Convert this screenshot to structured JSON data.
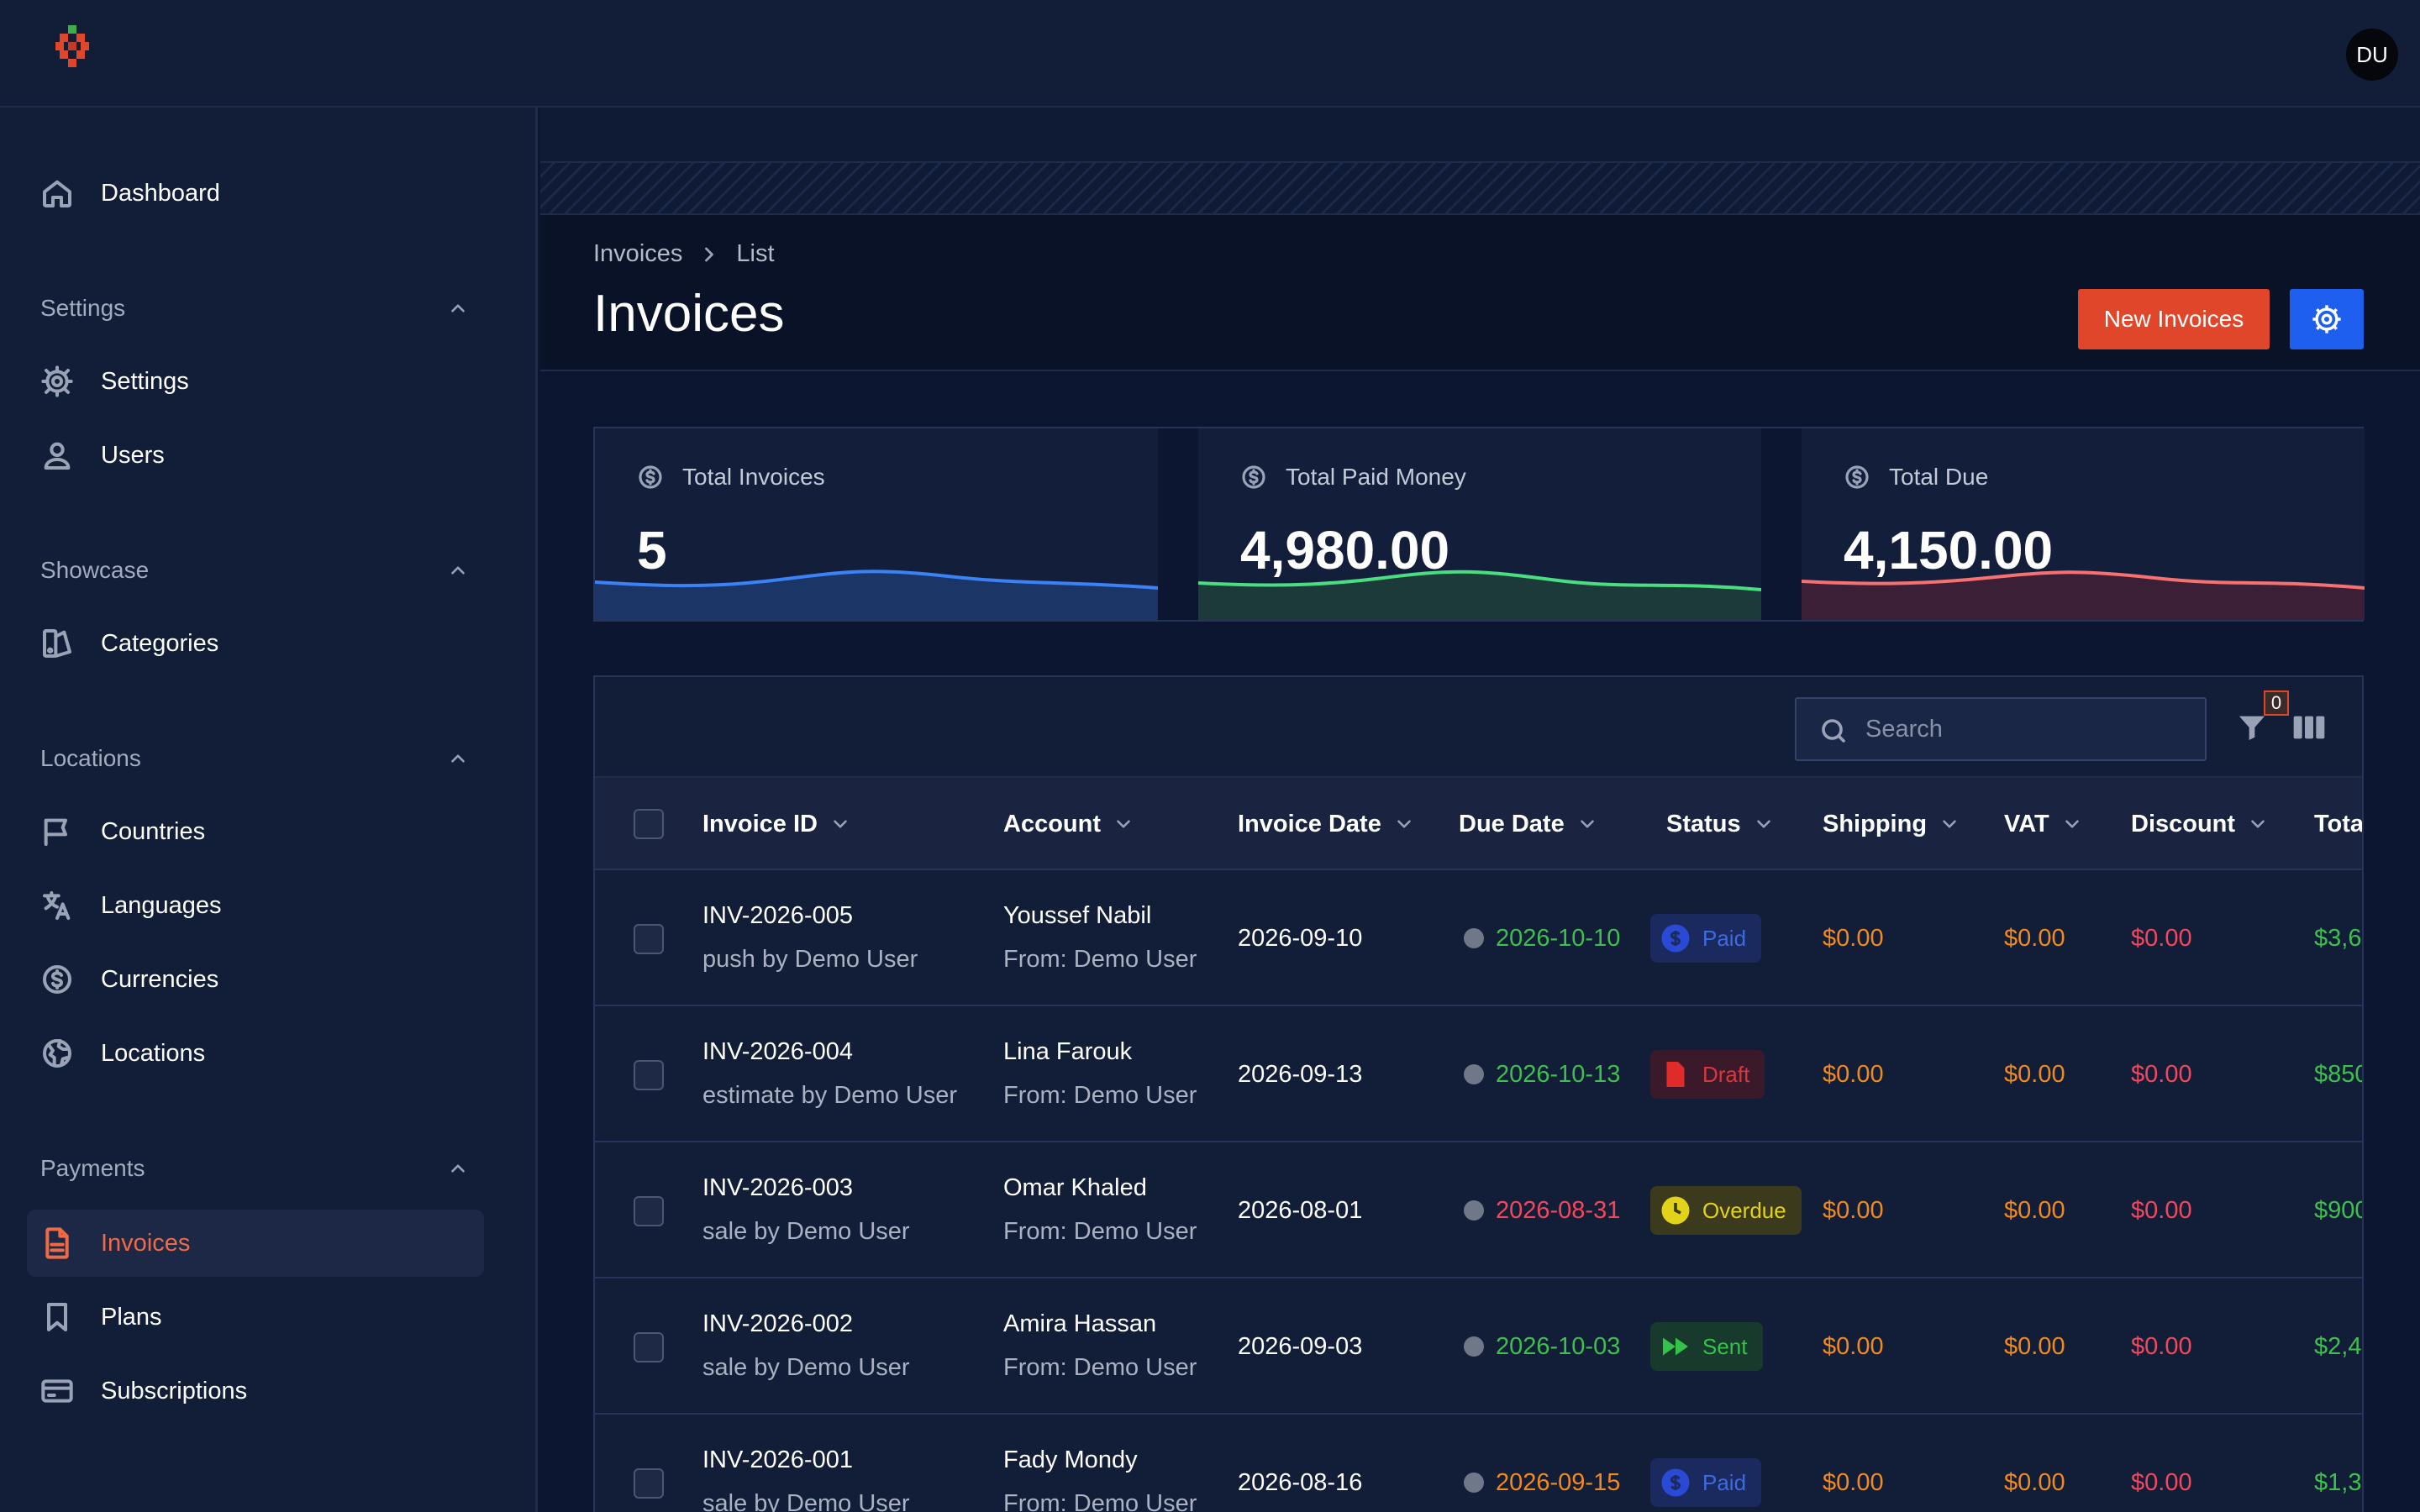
{
  "app": {
    "user_initials": "DU"
  },
  "sidebar": {
    "top_item": {
      "label": "Dashboard",
      "icon": "home-icon"
    },
    "groups": [
      {
        "title": "Settings",
        "items": [
          {
            "label": "Settings",
            "icon": "gear-icon"
          },
          {
            "label": "Users",
            "icon": "user-icon"
          }
        ]
      },
      {
        "title": "Showcase",
        "items": [
          {
            "label": "Categories",
            "icon": "categories-icon"
          }
        ]
      },
      {
        "title": "Locations",
        "items": [
          {
            "label": "Countries",
            "icon": "flag-icon"
          },
          {
            "label": "Languages",
            "icon": "translate-icon"
          },
          {
            "label": "Currencies",
            "icon": "dollar-icon"
          },
          {
            "label": "Locations",
            "icon": "globe-icon"
          }
        ]
      },
      {
        "title": "Payments",
        "items": [
          {
            "label": "Invoices",
            "icon": "file-icon",
            "active": true
          },
          {
            "label": "Plans",
            "icon": "bookmark-icon"
          },
          {
            "label": "Subscriptions",
            "icon": "card-icon"
          }
        ]
      }
    ]
  },
  "header": {
    "breadcrumb": [
      "Invoices",
      "List"
    ],
    "title": "Invoices",
    "new_button": "New Invoices"
  },
  "stats": [
    {
      "label": "Total Invoices",
      "value": "5",
      "color": "#3b82f6"
    },
    {
      "label": "Total Paid Money",
      "value": "4,980.00",
      "color": "#4ade80"
    },
    {
      "label": "Total Due",
      "value": "4,150.00",
      "color": "#f87171"
    }
  ],
  "table": {
    "search_placeholder": "Search",
    "filter_count": "0",
    "columns": [
      "Invoice ID",
      "Account",
      "Invoice Date",
      "Due Date",
      "Status",
      "Shipping",
      "VAT",
      "Discount",
      "Tota"
    ],
    "rows": [
      {
        "id": "INV-2026-005",
        "type": "push by Demo User",
        "account": "Youssef Nabil",
        "from": "From: Demo User",
        "date": "2026-09-10",
        "due": "2026-10-10",
        "due_state": "ok",
        "status": "Paid",
        "shipping": "$0.00",
        "vat": "$0.00",
        "discount": "$0.00",
        "total": "$3,6"
      },
      {
        "id": "INV-2026-004",
        "type": "estimate by Demo User",
        "account": "Lina Farouk",
        "from": "From: Demo User",
        "date": "2026-09-13",
        "due": "2026-10-13",
        "due_state": "ok",
        "status": "Draft",
        "shipping": "$0.00",
        "vat": "$0.00",
        "discount": "$0.00",
        "total": "$850"
      },
      {
        "id": "INV-2026-003",
        "type": "sale by Demo User",
        "account": "Omar Khaled",
        "from": "From: Demo User",
        "date": "2026-08-01",
        "due": "2026-08-31",
        "due_state": "late",
        "status": "Overdue",
        "shipping": "$0.00",
        "vat": "$0.00",
        "discount": "$0.00",
        "total": "$900"
      },
      {
        "id": "INV-2026-002",
        "type": "sale by Demo User",
        "account": "Amira Hassan",
        "from": "From: Demo User",
        "date": "2026-09-03",
        "due": "2026-10-03",
        "due_state": "ok",
        "status": "Sent",
        "shipping": "$0.00",
        "vat": "$0.00",
        "discount": "$0.00",
        "total": "$2,4"
      },
      {
        "id": "INV-2026-001",
        "type": "sale by Demo User",
        "account": "Fady Mondy",
        "from": "From: Demo User",
        "date": "2026-08-16",
        "due": "2026-09-15",
        "due_state": "warn",
        "status": "Paid",
        "shipping": "$0.00",
        "vat": "$0.00",
        "discount": "$0.00",
        "total": "$1,3"
      }
    ]
  },
  "colors": {
    "accent": "#e0462a",
    "primary": "#1f5ff0",
    "active_nav": "#ef6a46"
  }
}
